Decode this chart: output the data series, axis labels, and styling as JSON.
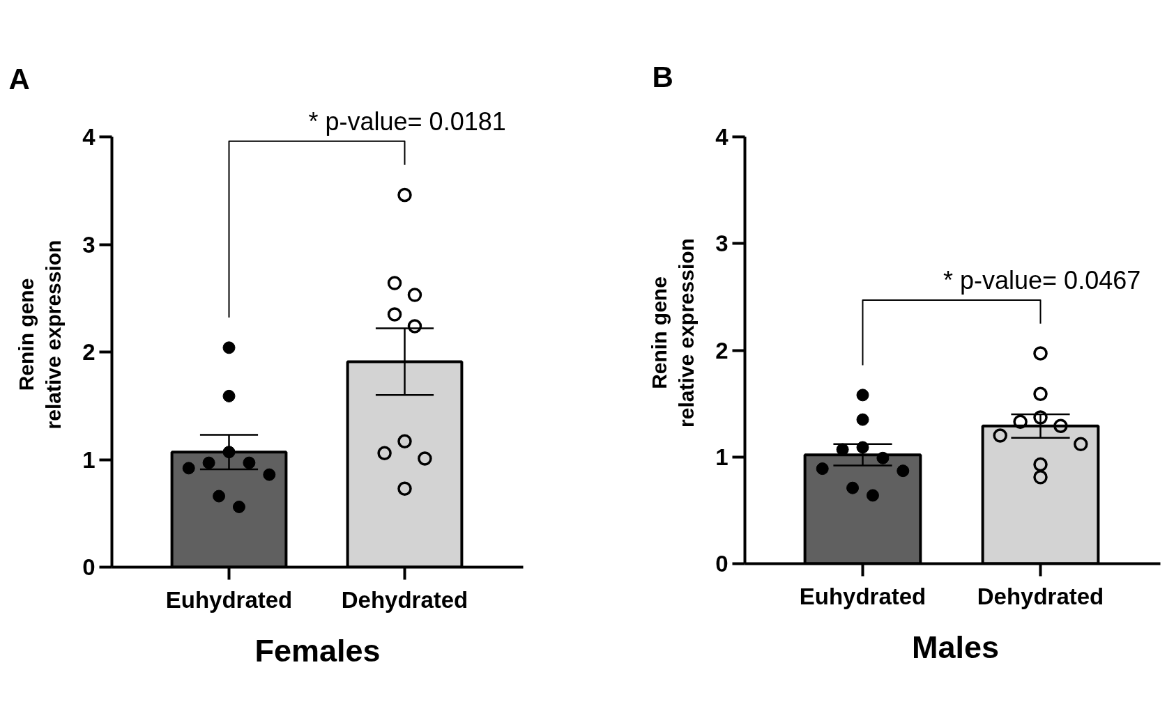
{
  "chart_data": [
    {
      "type": "bar",
      "title": "A",
      "xlabel": "Females",
      "ylabel": "Renin gene\nrelative expression",
      "categories": [
        "Euhydrated",
        "Dehydrated"
      ],
      "series": [
        {
          "colors": [
            "#606060",
            "#d3d3d3"
          ],
          "values": [
            1.07,
            1.91
          ],
          "errors": [
            0.16,
            0.31
          ]
        },
        {
          "type": "scatter",
          "color": "#000000",
          "marker": "circle",
          "x": [
            "Euhydrated",
            "Euhydrated",
            "Euhydrated",
            "Euhydrated",
            "Euhydrated",
            "Euhydrated",
            "Euhydrated",
            "Euhydrated",
            "Euhydrated"
          ],
          "values": [
            2.04,
            1.59,
            1.07,
            0.97,
            0.97,
            0.92,
            0.86,
            0.66,
            0.56
          ]
        },
        {
          "type": "scatter",
          "color": "#000000",
          "marker": "circle",
          "x": [
            "Dehydrated",
            "Dehydrated",
            "Dehydrated",
            "Dehydrated",
            "Dehydrated",
            "Dehydrated",
            "Dehydrated",
            "Dehydrated",
            "Dehydrated"
          ],
          "values": [
            3.46,
            2.64,
            2.53,
            2.35,
            2.24,
            1.17,
            1.06,
            1.01,
            0.73
          ]
        }
      ],
      "ylim": [
        0,
        4
      ],
      "yticks": [
        0,
        1,
        2,
        3,
        4
      ],
      "grid": false,
      "annotations": [
        "* p-value= 0.0181"
      ]
    },
    {
      "type": "bar",
      "title": "B",
      "xlabel": "Males",
      "ylabel": "Renin gene\nrelative expression",
      "categories": [
        "Euhydrated",
        "Dehydrated"
      ],
      "series": [
        {
          "colors": [
            "#606060",
            "#d3d3d3"
          ],
          "values": [
            1.02,
            1.29
          ],
          "errors": [
            0.1,
            0.11
          ]
        },
        {
          "type": "scatter",
          "color": "#000000",
          "marker": "circle",
          "x": [
            "Euhydrated",
            "Euhydrated",
            "Euhydrated",
            "Euhydrated",
            "Euhydrated",
            "Euhydrated",
            "Euhydrated",
            "Euhydrated",
            "Euhydrated"
          ],
          "values": [
            1.58,
            1.35,
            1.09,
            1.07,
            0.99,
            0.89,
            0.87,
            0.71,
            0.64
          ]
        },
        {
          "type": "scatter",
          "color": "#000000",
          "marker": "circle",
          "x": [
            "Dehydrated",
            "Dehydrated",
            "Dehydrated",
            "Dehydrated",
            "Dehydrated",
            "Dehydrated",
            "Dehydrated",
            "Dehydrated",
            "Dehydrated"
          ],
          "values": [
            1.97,
            1.59,
            1.37,
            1.29,
            1.33,
            1.2,
            1.12,
            0.93,
            0.81
          ]
        }
      ],
      "ylim": [
        0,
        4
      ],
      "yticks": [
        0,
        1,
        2,
        3,
        4
      ],
      "grid": false,
      "annotations": [
        "* p-value= 0.0467"
      ]
    }
  ]
}
